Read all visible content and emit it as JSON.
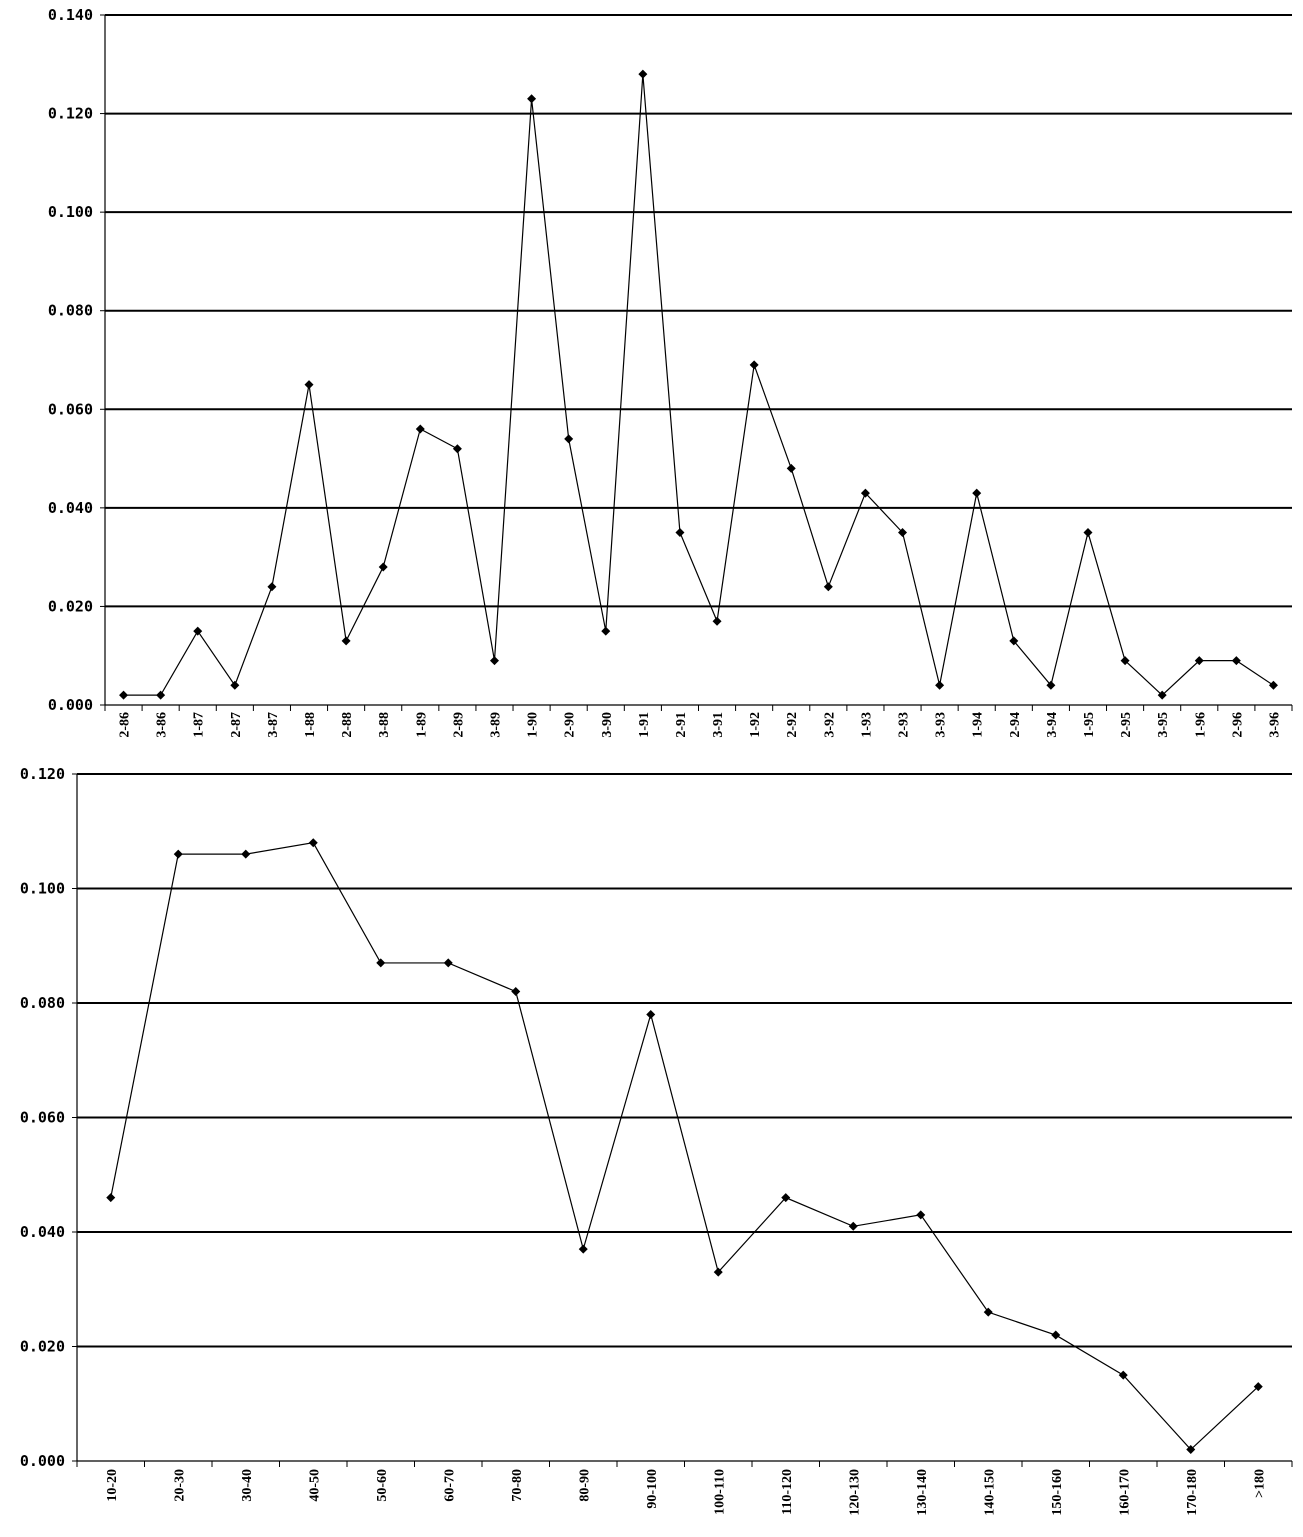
{
  "chart_data": [
    {
      "type": "line",
      "title": "",
      "xlabel": "",
      "ylabel": "",
      "ylim": [
        0,
        0.14
      ],
      "yticks": [
        "0.000",
        "0.020",
        "0.040",
        "0.060",
        "0.080",
        "0.100",
        "0.120",
        "0.140"
      ],
      "grid": true,
      "categories": [
        "2-86",
        "3-86",
        "1-87",
        "2-87",
        "3-87",
        "1-88",
        "2-88",
        "3-88",
        "1-89",
        "2-89",
        "3-89",
        "1-90",
        "2-90",
        "3-90",
        "1-91",
        "2-91",
        "3-91",
        "1-92",
        "2-92",
        "3-92",
        "1-93",
        "2-93",
        "3-93",
        "1-94",
        "2-94",
        "3-94",
        "1-95",
        "2-95",
        "3-95",
        "1-96",
        "2-96",
        "3-96"
      ],
      "series": [
        {
          "values": [
            0.002,
            0.002,
            0.015,
            0.004,
            0.024,
            0.065,
            0.013,
            0.028,
            0.056,
            0.052,
            0.009,
            0.123,
            0.054,
            0.015,
            0.128,
            0.035,
            0.017,
            0.069,
            0.048,
            0.024,
            0.043,
            0.035,
            0.004,
            0.043,
            0.013,
            0.004,
            0.035,
            0.009,
            0.002,
            0.009,
            0.009,
            0.004
          ]
        }
      ]
    },
    {
      "type": "line",
      "title": "",
      "xlabel": "",
      "ylabel": "",
      "ylim": [
        0,
        0.12
      ],
      "yticks": [
        "0.000",
        "0.020",
        "0.040",
        "0.060",
        "0.080",
        "0.100",
        "0.120"
      ],
      "grid": true,
      "categories": [
        "10-20",
        "20-30",
        "30-40",
        "40-50",
        "50-60",
        "60-70",
        "70-80",
        "80-90",
        "90-100",
        "100-110",
        "110-120",
        "120-130",
        "130-140",
        "140-150",
        "150-160",
        "160-170",
        "170-180",
        ">180"
      ],
      "series": [
        {
          "values": [
            0.046,
            0.106,
            0.106,
            0.108,
            0.087,
            0.087,
            0.082,
            0.037,
            0.078,
            0.033,
            0.046,
            0.041,
            0.043,
            0.026,
            0.022,
            0.015,
            0.002,
            0.013
          ]
        }
      ]
    }
  ]
}
